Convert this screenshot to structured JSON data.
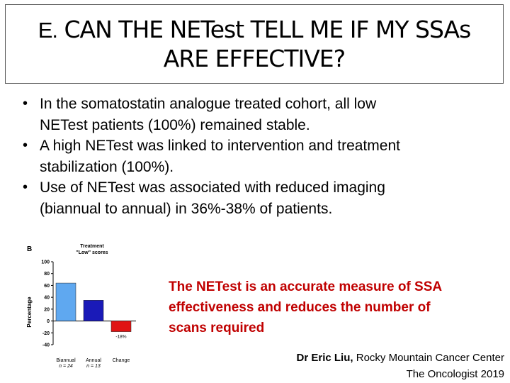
{
  "slide": {
    "title_prefix": "E.",
    "title_line1": "CAN THE NETest TELL ME IF MY SSAs",
    "title_line2": "ARE EFFECTIVE?",
    "bullets": [
      {
        "line1": "In the somatostatin analogue treated cohort, all low",
        "line2": "NETest patients (100%) remained stable."
      },
      {
        "line1": "A high NETest was linked to intervention and treatment",
        "line2": "stabilization (100%)."
      },
      {
        "line1": "Use of NETest was associated with reduced imaging",
        "line2": "(biannual to annual) in 36%-38% of patients."
      }
    ],
    "callout": {
      "line1": "The NETest is an accurate measure of SSA",
      "line2": "effectiveness and reduces the number of",
      "line3": "scans required"
    },
    "credit": {
      "author": "Dr Eric Liu,",
      "affiliation": "Rocky Mountain Cancer Center",
      "journal": "The Oncologist 2019"
    }
  },
  "chart_data": {
    "type": "bar",
    "panel_label": "B",
    "title_line1": "Treatment",
    "title_line2": "\"Low\" scores",
    "ylabel": "Percentage",
    "ylim": [
      -40,
      100
    ],
    "yticks": [
      "100",
      "80",
      "60",
      "40",
      "20",
      "0",
      "-20",
      "-40"
    ],
    "categories": [
      {
        "label": "Biannual",
        "n": "n = 24",
        "value": 64,
        "color": "#5fa8f0"
      },
      {
        "label": "Annual",
        "n": "n = 13",
        "value": 35,
        "color": "#1a1ab8"
      },
      {
        "label": "Change",
        "n": "",
        "value": -18,
        "color": "#e01414"
      }
    ],
    "annotation": "-18%"
  }
}
